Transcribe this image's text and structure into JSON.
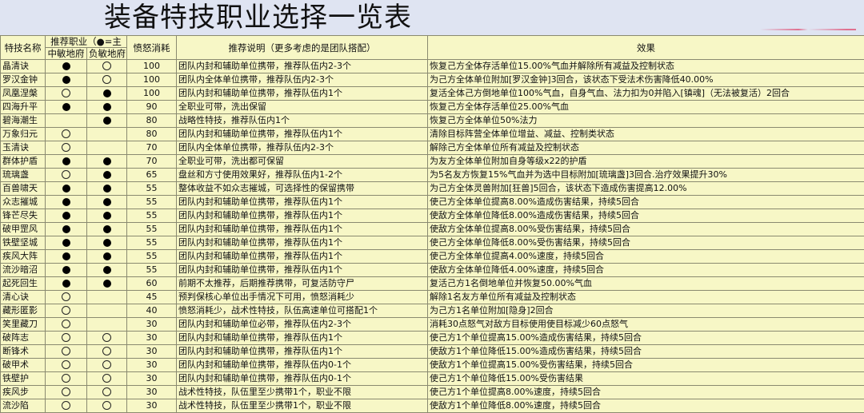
{
  "title": "装备特技职业选择一览表",
  "headers": {
    "name": "特技名称",
    "recommend": "推荐职业（●=主",
    "zhong": "中敏地府",
    "fu": "负敏地府",
    "anger": "愤怒消耗",
    "desc": "推荐说明（更多考虑的是团队搭配）",
    "effect": "效果"
  },
  "legend": {
    "filled": "主推荐",
    "hollow": "可选"
  },
  "rows": [
    {
      "name": "晶清诀",
      "zhong": "filled",
      "fu": "hollow",
      "anger": "100",
      "desc": "团队内封和辅助单位携带，推荐队伍内2-3个",
      "effect": "恢复己方全体存活单位15.00%气血并解除所有减益及控制状态"
    },
    {
      "name": "罗汉金钟",
      "zhong": "filled",
      "fu": "hollow",
      "anger": "100",
      "desc": "团队内全体单位携带，推荐队伍内2-3个",
      "effect": "为己方全体单位附加[罗汉金钟]3回合，该状态下受法术伤害降低40.00%"
    },
    {
      "name": "凤凰涅槃",
      "zhong": "hollow",
      "fu": "filled",
      "anger": "100",
      "desc": "团队内封和辅助单位携带，推荐队伍内1个",
      "effect": "复活全体己方倒地单位100%气血，自身气血、法力扣为0并陷入[镇魂]（无法被复活）2回合"
    },
    {
      "name": "四海升平",
      "zhong": "filled",
      "fu": "filled",
      "anger": "90",
      "desc": "全职业可带，洗出保留",
      "effect": "恢复己方全体存活单位25.00%气血"
    },
    {
      "name": "碧海潮生",
      "zhong": "",
      "fu": "filled",
      "anger": "80",
      "desc": "战略性特技，推荐队伍内1个",
      "effect": "恢复己方全体单位50%法力"
    },
    {
      "name": "万象归元",
      "zhong": "hollow",
      "fu": "",
      "anger": "80",
      "desc": "团队内封和辅助单位携带，推荐队伍内1个",
      "effect": "清除目标阵营全体单位增益、减益、控制类状态"
    },
    {
      "name": "玉清诀",
      "zhong": "hollow",
      "fu": "",
      "anger": "70",
      "desc": "团队内全体单位携带，推荐队伍内2-3个",
      "effect": "解除己方全体单位所有减益及控制状态"
    },
    {
      "name": "群体护盾",
      "zhong": "filled",
      "fu": "filled",
      "anger": "70",
      "desc": "全职业可带，洗出都可保留",
      "effect": "为友方全体单位附加自身等级x22的护盾"
    },
    {
      "name": "琉璃盏",
      "zhong": "hollow",
      "fu": "filled",
      "anger": "65",
      "desc": "盘丝和方寸使用效果好，推荐队伍内1-2个",
      "effect": "为5名友方恢复15%气血并为选中目标附加[琉璃盏]3回合.治疗效果提升30%"
    },
    {
      "name": "百兽啸天",
      "zhong": "filled",
      "fu": "filled",
      "anger": "55",
      "desc": "整体收益不如众志摧城，可选择性的保留携带",
      "effect": "为己方全体灵兽附加[狂兽]5回合，该状态下造成伤害提高12.00%"
    },
    {
      "name": "众志摧城",
      "zhong": "filled",
      "fu": "filled",
      "anger": "55",
      "desc": "团队内封和辅助单位携带，推荐队伍内1个",
      "effect": "使己方全体单位提高8.00%造成伤害结果，持续5回合"
    },
    {
      "name": "锋芒尽失",
      "zhong": "filled",
      "fu": "filled",
      "anger": "55",
      "desc": "团队内封和辅助单位携带，推荐队伍内1个",
      "effect": "使敌方全体单位降低8.00%造成伤害结果，持续5回合"
    },
    {
      "name": "破甲罡风",
      "zhong": "filled",
      "fu": "filled",
      "anger": "55",
      "desc": "团队内封和辅助单位携带，推荐队伍内1个",
      "effect": "使敌方全体单位提高8.00%受伤害结果，持续5回合"
    },
    {
      "name": "铁壁坚城",
      "zhong": "filled",
      "fu": "filled",
      "anger": "55",
      "desc": "团队内封和辅助单位携带，推荐队伍内1个",
      "effect": "使己方全体单位降低8.00%受伤害结果，持续5回合"
    },
    {
      "name": "疾风大阵",
      "zhong": "filled",
      "fu": "filled",
      "anger": "55",
      "desc": "团队内封和辅助单位携带，推荐队伍内1个",
      "effect": "使己方全体单位提高4.00%速度，持续5回合"
    },
    {
      "name": "流沙暗沼",
      "zhong": "filled",
      "fu": "filled",
      "anger": "55",
      "desc": "团队内封和辅助单位携带，推荐队伍内1个",
      "effect": "使敌方全体单位降低4.00%速度，持续5回合"
    },
    {
      "name": "起死回生",
      "zhong": "filled",
      "fu": "filled",
      "anger": "60",
      "desc": "前期不太推荐，后期推荐携带，可复活防守尸",
      "effect": "复活己方1名倒地单位并恢复50.00%气血"
    },
    {
      "name": "清心诀",
      "zhong": "hollow",
      "fu": "",
      "anger": "45",
      "desc": "预判保核心单位出手情况下可用，愤怒消耗少",
      "effect": "解除1名友方单位所有减益及控制状态"
    },
    {
      "name": "藏形匿影",
      "zhong": "hollow",
      "fu": "",
      "anger": "40",
      "desc": "愤怒消耗少，战术性特技，队伍高速单位可搭配1个",
      "effect": "为己方1名单位附加[隐身]2回合"
    },
    {
      "name": "笑里藏刀",
      "zhong": "hollow",
      "fu": "",
      "anger": "30",
      "desc": "团队内封和辅助单位必带，推荐队伍内2-3个",
      "effect": "消耗30点怒气对敌方目标使用使目标减少60点怒气"
    },
    {
      "name": "破阵志",
      "zhong": "hollow",
      "fu": "hollow",
      "anger": "30",
      "desc": "团队内封和辅助单位携带，推荐队伍内1个",
      "effect": "使己方1个单位提高15.00%造成伤害结果，持续5回合"
    },
    {
      "name": "断锋术",
      "zhong": "hollow",
      "fu": "hollow",
      "anger": "30",
      "desc": "团队内封和辅助单位携带，推荐队伍内1个",
      "effect": "使敌方1个单位降低15.00%造成伤害结果，持续5回合"
    },
    {
      "name": "破甲术",
      "zhong": "hollow",
      "fu": "hollow",
      "anger": "30",
      "desc": "团队内封和辅助单位携带，推荐队伍内0-1个",
      "effect": "使敌方1个单位提高15.00%受伤害结果，持续5回合"
    },
    {
      "name": "铁壁护",
      "zhong": "hollow",
      "fu": "hollow",
      "anger": "30",
      "desc": "团队内封和辅助单位携带，推荐队伍内0-1个",
      "effect": "使己方1个单位降低15.00%受伤害结果"
    },
    {
      "name": "疾风步",
      "zhong": "hollow",
      "fu": "hollow",
      "anger": "30",
      "desc": "战术性特技，队伍里至少携带1个，职业不限",
      "effect": "使己方1个单位提高8.00%速度，持续5回合"
    },
    {
      "name": "流沙陷",
      "zhong": "hollow",
      "fu": "hollow",
      "anger": "30",
      "desc": "战术性特技，队伍里至少携带1个，职业不限",
      "effect": "使敌方1个单位降低8.00%速度，持续5回合"
    }
  ]
}
